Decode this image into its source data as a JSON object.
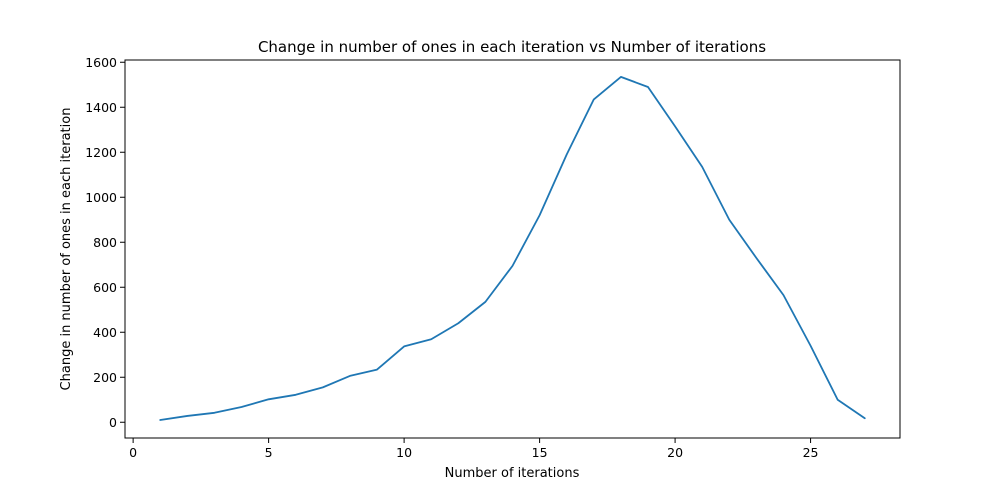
{
  "chart_data": {
    "type": "line",
    "title": "Change in number of ones in each iteration vs Number of iterations",
    "xlabel": "Number of iterations",
    "ylabel": "Change in number of ones in each iteration",
    "xlim": [
      -0.3,
      28.3
    ],
    "ylim": [
      -70,
      1610
    ],
    "xticks": [
      0,
      5,
      10,
      15,
      20,
      25
    ],
    "yticks": [
      0,
      200,
      400,
      600,
      800,
      1000,
      1200,
      1400,
      1600
    ],
    "grid": false,
    "line_color": "#1f77b4",
    "series": [
      {
        "x": [
          1,
          2,
          3,
          4,
          5,
          6,
          7,
          8,
          9,
          10,
          11,
          12,
          13,
          14,
          15,
          16,
          17,
          18,
          19,
          20,
          21,
          22,
          23,
          24,
          25,
          26,
          27
        ],
        "values": [
          10,
          28,
          42,
          68,
          102,
          122,
          155,
          206,
          234,
          337,
          369,
          440,
          535,
          695,
          920,
          1190,
          1435,
          1535,
          1490,
          1315,
          1135,
          900,
          730,
          565,
          340,
          100,
          18
        ]
      }
    ]
  }
}
